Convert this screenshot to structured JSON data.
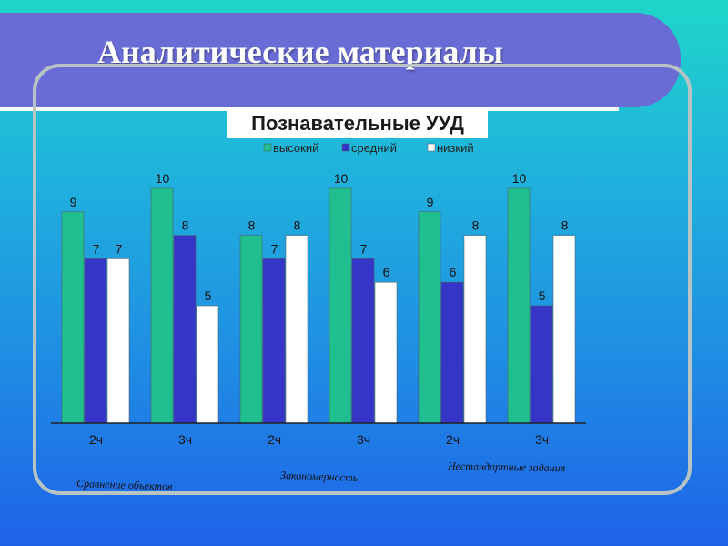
{
  "slide": {
    "title": "Аналитические материалы"
  },
  "chart_data": {
    "type": "bar",
    "title": "Познавательные УУД",
    "categories": [
      "2ч",
      "3ч",
      "2ч",
      "3ч",
      "2ч",
      "3ч"
    ],
    "series": [
      {
        "name": "высокий",
        "color": "#1fbf8f",
        "values": [
          9,
          10,
          8,
          10,
          9,
          10
        ]
      },
      {
        "name": "средний",
        "color": "#3535c8",
        "values": [
          7,
          8,
          7,
          7,
          6,
          5
        ]
      },
      {
        "name": "низкий",
        "color": "#ffffff",
        "values": [
          7,
          5,
          8,
          6,
          8,
          8
        ]
      }
    ],
    "ylim": [
      0,
      10
    ],
    "legend": "top",
    "grid": false,
    "group_labels": [
      "Сравнение объектов",
      "Закономерность",
      "Нестандартные задания"
    ]
  }
}
